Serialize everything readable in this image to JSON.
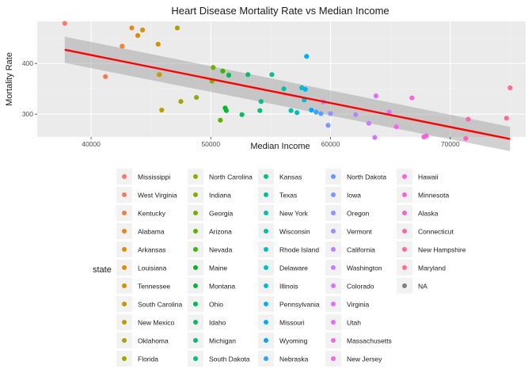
{
  "chart_data": {
    "type": "scatter",
    "title": "Heart Disease Mortality Rate vs Median Income",
    "xlabel": "Median Income",
    "ylabel": "Mortality Rate",
    "xlim": [
      35500,
      76300
    ],
    "ylim": [
      255,
      483
    ],
    "x_ticks": [
      40000,
      50000,
      60000,
      70000
    ],
    "x_tick_labels": [
      "40000",
      "50000",
      "60000",
      "70000"
    ],
    "y_ticks": [
      300,
      400
    ],
    "y_tick_labels": [
      "300",
      "400"
    ],
    "grid": true,
    "legend": {
      "title": "state",
      "placement": "bottom"
    },
    "trend_line": {
      "method": "linear",
      "color": "#ff0000",
      "x": [
        37800,
        75000
      ],
      "y": [
        427,
        251
      ],
      "band_width": [
        26,
        24
      ],
      "band_color": "#999999"
    },
    "series": [
      {
        "name": "Mississippi",
        "color": "#f8766d",
        "x": [
          37800
        ],
        "y": [
          479
        ]
      },
      {
        "name": "West Virginia",
        "color": "#f37b59",
        "x": [
          41200
        ],
        "y": [
          374
        ]
      },
      {
        "name": "Kentucky",
        "color": "#ed8141",
        "x": [
          42600
        ],
        "y": [
          434
        ]
      },
      {
        "name": "Alabama",
        "color": "#e7851e",
        "x": [
          43400
        ],
        "y": [
          470
        ]
      },
      {
        "name": "Arkansas",
        "color": "#e08b00",
        "x": [
          43900
        ],
        "y": [
          455
        ]
      },
      {
        "name": "Louisiana",
        "color": "#d89000",
        "x": [
          44300
        ],
        "y": [
          466
        ]
      },
      {
        "name": "Tennessee",
        "color": "#cf9400",
        "x": [
          45600
        ],
        "y": [
          438
        ]
      },
      {
        "name": "South Carolina",
        "color": "#c59900",
        "x": [
          45700
        ],
        "y": [
          378
        ]
      },
      {
        "name": "New Mexico",
        "color": "#bb9d00",
        "x": [
          45900
        ],
        "y": [
          308
        ]
      },
      {
        "name": "Oklahoma",
        "color": "#b0a100",
        "x": [
          47200
        ],
        "y": [
          470
        ]
      },
      {
        "name": "Florida",
        "color": "#a3a500",
        "x": [
          47500
        ],
        "y": [
          325
        ]
      },
      {
        "name": "North Carolina",
        "color": "#95a900",
        "x": [
          48800
        ],
        "y": [
          333
        ]
      },
      {
        "name": "Indiana",
        "color": "#85ad00",
        "x": [
          50100
        ],
        "y": [
          365
        ]
      },
      {
        "name": "Georgia",
        "color": "#72b000",
        "x": [
          50200
        ],
        "y": [
          392
        ]
      },
      {
        "name": "Arizona",
        "color": "#5bb300",
        "x": [
          50800
        ],
        "y": [
          288
        ]
      },
      {
        "name": "Nevada",
        "color": "#39b600",
        "x": [
          51000
        ],
        "y": [
          385
        ]
      },
      {
        "name": "Maine",
        "color": "#00b81f",
        "x": [
          51200
        ],
        "y": [
          312
        ]
      },
      {
        "name": "Montana",
        "color": "#00ba38",
        "x": [
          51300
        ],
        "y": [
          307
        ]
      },
      {
        "name": "Ohio",
        "color": "#00bb4e",
        "x": [
          51500
        ],
        "y": [
          377
        ]
      },
      {
        "name": "Idaho",
        "color": "#00bd5f",
        "x": [
          52600
        ],
        "y": [
          299
        ]
      },
      {
        "name": "Michigan",
        "color": "#00be70",
        "x": [
          53100
        ],
        "y": [
          378
        ]
      },
      {
        "name": "South Dakota",
        "color": "#00bf7d",
        "x": [
          54100
        ],
        "y": [
          307
        ]
      },
      {
        "name": "Kansas",
        "color": "#00c08b",
        "x": [
          54200
        ],
        "y": [
          325
        ]
      },
      {
        "name": "Texas",
        "color": "#00c097",
        "x": [
          55100
        ],
        "y": [
          378
        ]
      },
      {
        "name": "New York",
        "color": "#00c1a3",
        "x": [
          56100
        ],
        "y": [
          350
        ]
      },
      {
        "name": "Wisconsin",
        "color": "#00c0af",
        "x": [
          56700
        ],
        "y": [
          307
        ]
      },
      {
        "name": "Rhode Island",
        "color": "#00bfba",
        "x": [
          57200
        ],
        "y": [
          303
        ]
      },
      {
        "name": "Delaware",
        "color": "#00bec4",
        "x": [
          57600
        ],
        "y": [
          352
        ]
      },
      {
        "name": "Illinois",
        "color": "#00bcd8",
        "x": [
          57800
        ],
        "y": [
          328
        ]
      },
      {
        "name": "Pennsylvania",
        "color": "#00b4ef",
        "x": [
          57900
        ],
        "y": [
          349
        ]
      },
      {
        "name": "Missouri",
        "color": "#00aefa",
        "x": [
          58000
        ],
        "y": [
          414
        ]
      },
      {
        "name": "Wyoming",
        "color": "#00a9ff",
        "x": [
          58400
        ],
        "y": [
          308
        ]
      },
      {
        "name": "Nebraska",
        "color": "#35a2ff",
        "x": [
          58800
        ],
        "y": [
          304
        ]
      },
      {
        "name": "North Dakota",
        "color": "#619cff",
        "x": [
          59200
        ],
        "y": [
          301
        ]
      },
      {
        "name": "Iowa",
        "color": "#7c96ff",
        "x": [
          59800
        ],
        "y": [
          278
        ]
      },
      {
        "name": "Oregon",
        "color": "#9590ff",
        "x": [
          60000
        ],
        "y": [
          301
        ]
      },
      {
        "name": "Vermont",
        "color": "#a58aff",
        "x": [
          59400
        ],
        "y": [
          324
        ]
      },
      {
        "name": "California",
        "color": "#b983ff",
        "x": [
          62100
        ],
        "y": [
          299
        ]
      },
      {
        "name": "Washington",
        "color": "#c77cff",
        "x": [
          63200
        ],
        "y": [
          282
        ]
      },
      {
        "name": "Colorado",
        "color": "#d376fb",
        "x": [
          63700
        ],
        "y": [
          254
        ]
      },
      {
        "name": "Virginia",
        "color": "#dd71fa",
        "x": [
          63800
        ],
        "y": [
          336
        ]
      },
      {
        "name": "Utah",
        "color": "#e76bf3",
        "x": [
          64900
        ],
        "y": [
          304
        ]
      },
      {
        "name": "Massachusetts",
        "color": "#ef67eb",
        "x": [
          65500
        ],
        "y": [
          275
        ]
      },
      {
        "name": "New Jersey",
        "color": "#f564e3",
        "x": [
          66800
        ],
        "y": [
          332
        ]
      },
      {
        "name": "Hawaii",
        "color": "#fa62db",
        "x": [
          67800
        ],
        "y": [
          255
        ]
      },
      {
        "name": "Minnesota",
        "color": "#fd61d1",
        "x": [
          68000
        ],
        "y": [
          257
        ]
      },
      {
        "name": "Alaska",
        "color": "#ff62bc",
        "x": [
          71300
        ],
        "y": [
          252
        ]
      },
      {
        "name": "Connecticut",
        "color": "#ff64b0",
        "x": [
          71500
        ],
        "y": [
          290
        ]
      },
      {
        "name": "New Hampshire",
        "color": "#ff67a4",
        "x": [
          74700
        ],
        "y": [
          292
        ]
      },
      {
        "name": "Maryland",
        "color": "#ff6c91",
        "x": [
          75000
        ],
        "y": [
          352
        ]
      },
      {
        "name": "NA",
        "color": "#7f7f7f",
        "x": [],
        "y": []
      }
    ]
  }
}
